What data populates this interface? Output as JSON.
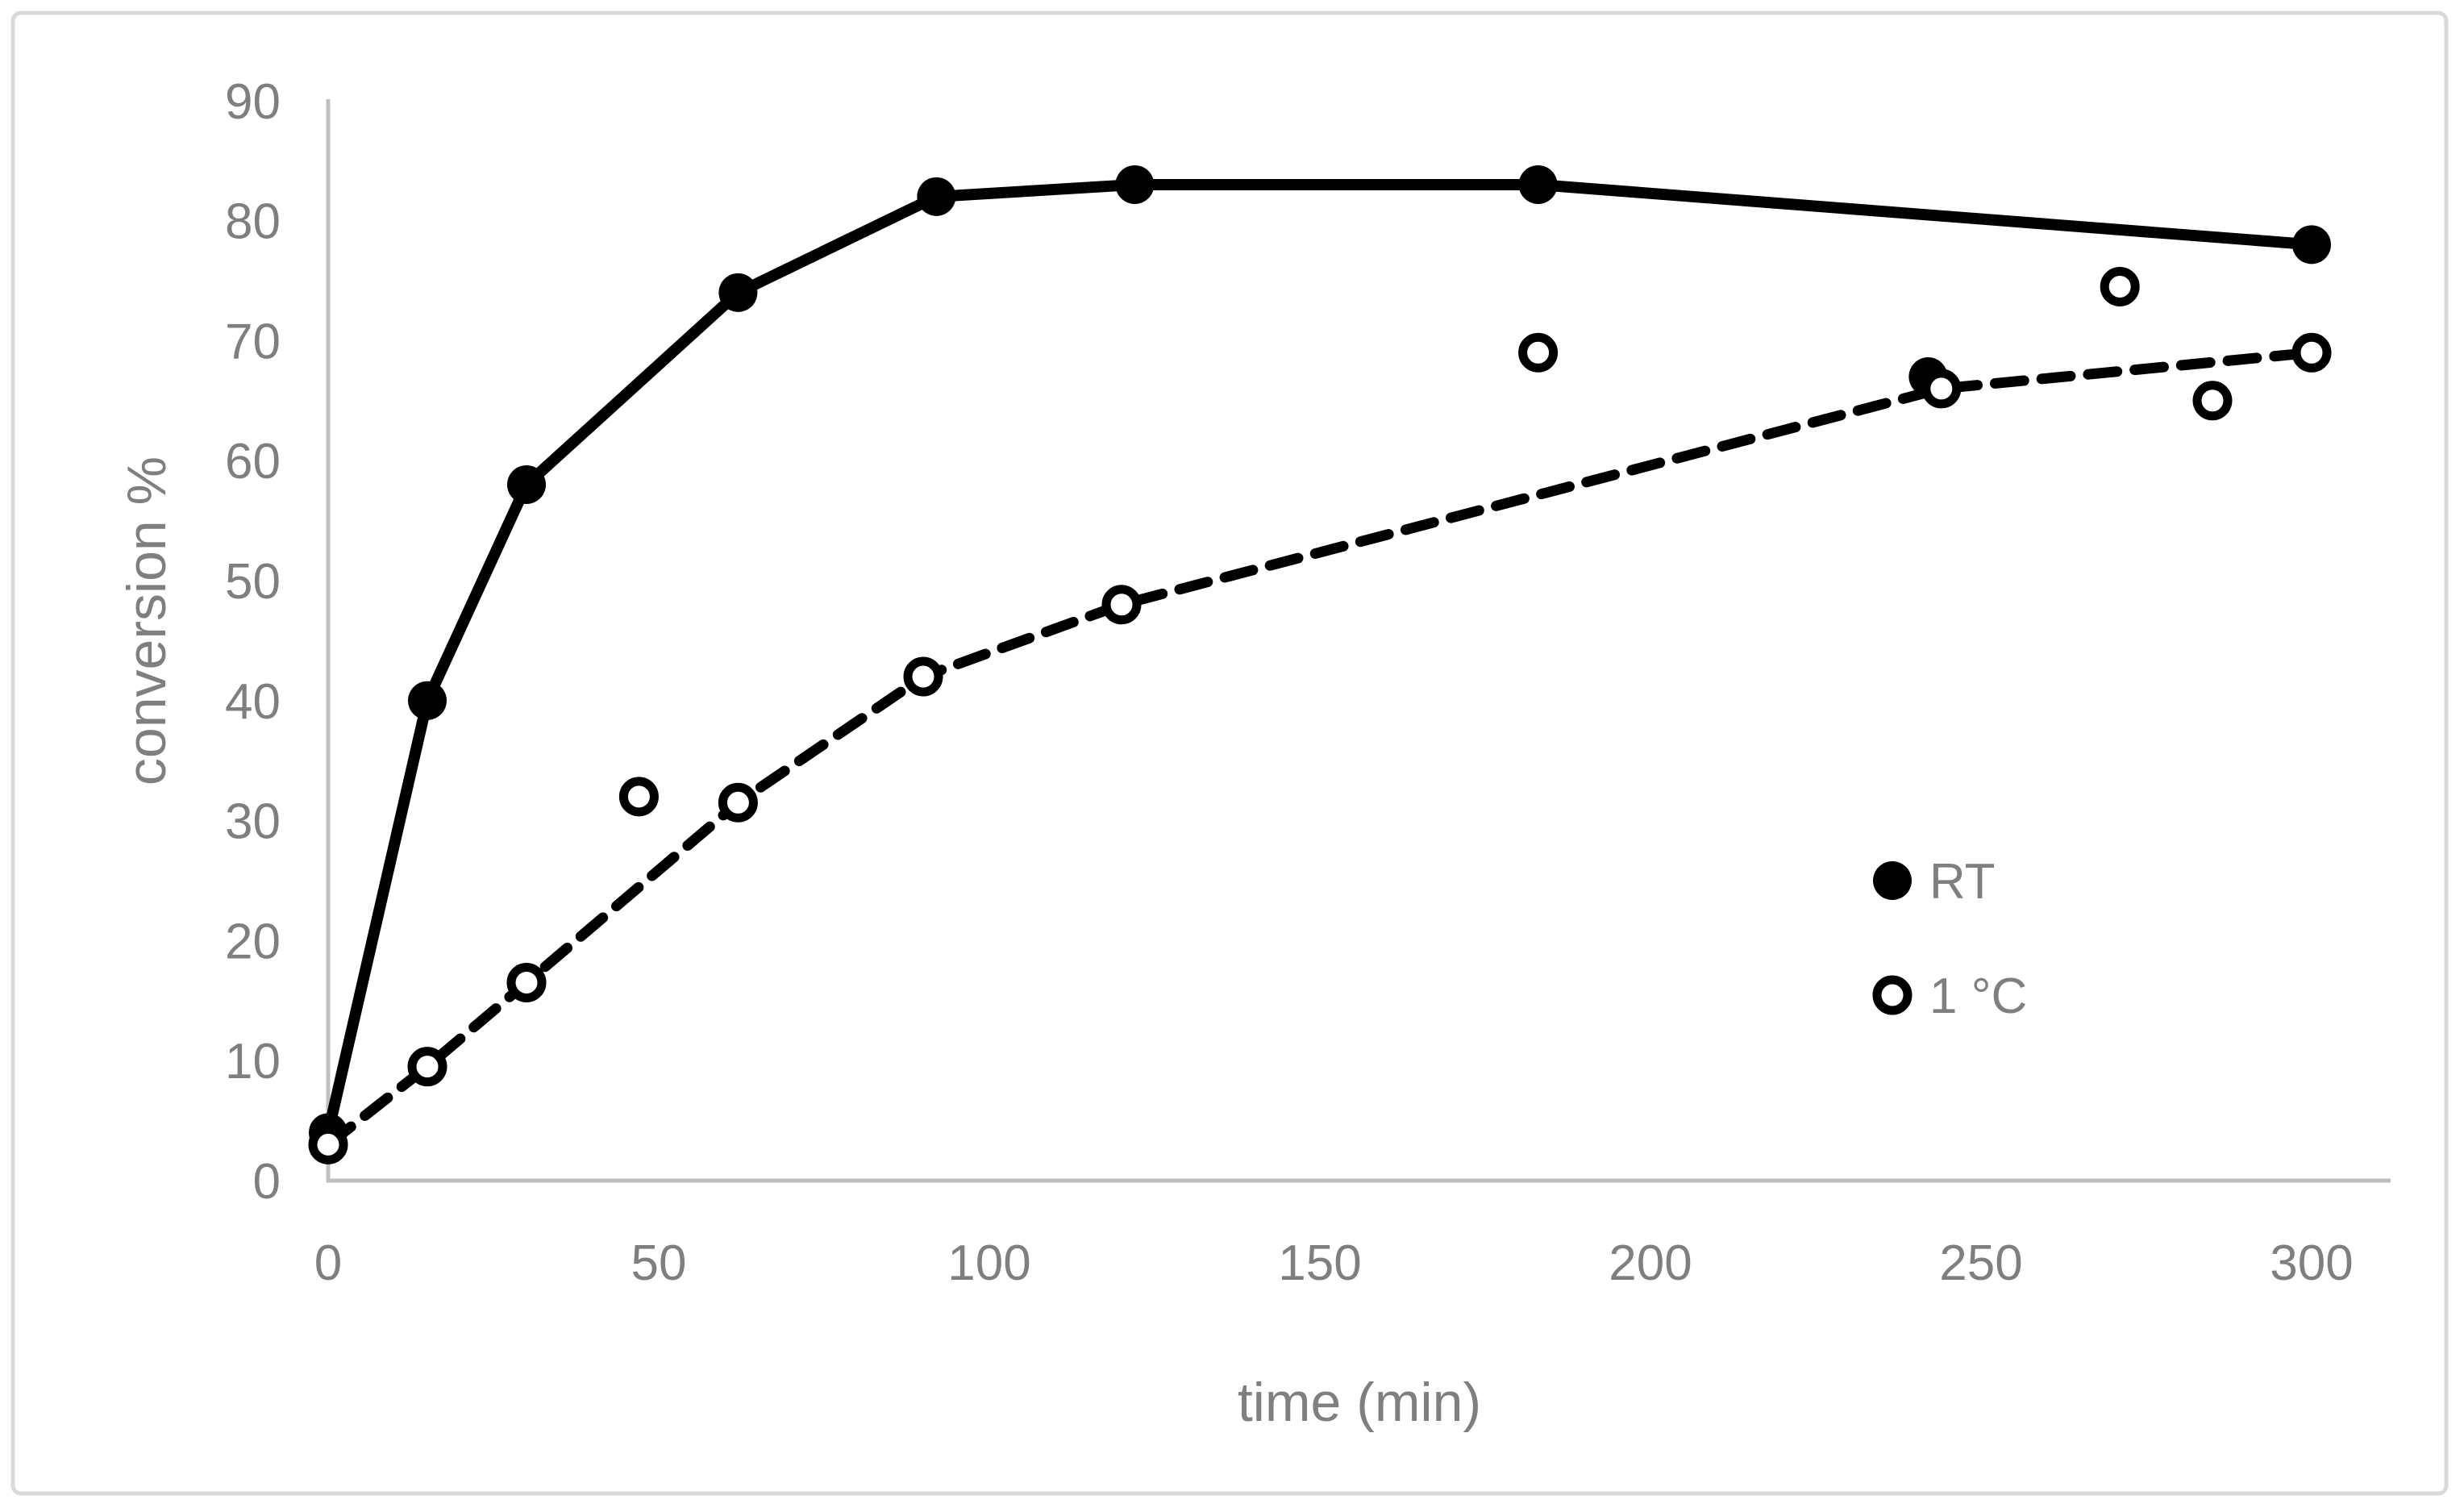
{
  "figure": {
    "background": "#ffffff",
    "border_color": "#d9d9d9",
    "axis_line_color": "#bfbfbf",
    "text_color": "#7f7f7f",
    "series_color": "#000000"
  },
  "chart_data": {
    "type": "scatter",
    "subtype": "scatter-with-lines",
    "title": "",
    "xlabel": "time (min)",
    "ylabel": "conversion %",
    "xlim": [
      0,
      312
    ],
    "ylim": [
      0,
      90
    ],
    "x_ticks": [
      0,
      50,
      100,
      150,
      200,
      250,
      300
    ],
    "y_ticks": [
      0,
      10,
      20,
      30,
      40,
      50,
      60,
      70,
      80,
      90
    ],
    "grid": false,
    "legend_position": "inside-right",
    "series": [
      {
        "name": "RT",
        "marker": "filled-circle",
        "line_style": "solid",
        "color": "#000000",
        "line_points": [
          [
            0,
            4
          ],
          [
            15,
            40
          ],
          [
            30,
            58
          ],
          [
            62,
            74
          ],
          [
            92,
            82
          ],
          [
            122,
            83
          ],
          [
            183,
            83
          ],
          [
            300,
            78
          ]
        ],
        "scatter_only_points": [
          [
            242,
            67
          ]
        ]
      },
      {
        "name": "1 °C",
        "marker": "open-circle",
        "line_style": "dashed",
        "color": "#000000",
        "line_points": [
          [
            0,
            3
          ],
          [
            15,
            9.5
          ],
          [
            30,
            16.5
          ],
          [
            62,
            31.5
          ],
          [
            90,
            42
          ],
          [
            120,
            48
          ],
          [
            244,
            66
          ],
          [
            300,
            69
          ]
        ],
        "scatter_only_points": [
          [
            47,
            32
          ],
          [
            183,
            69
          ],
          [
            271,
            74.5
          ],
          [
            285,
            65
          ]
        ]
      }
    ],
    "legend": [
      {
        "label": "RT",
        "marker": "filled-circle"
      },
      {
        "label": "1 °C",
        "marker": "open-circle"
      }
    ]
  }
}
